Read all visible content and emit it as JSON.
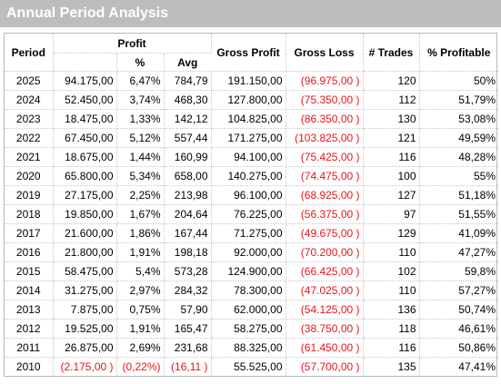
{
  "window": {
    "title": "Annual Period Analysis"
  },
  "colors": {
    "negative": "#e8151b",
    "title_bar": "#bdbdbd"
  },
  "table": {
    "headers": {
      "period": "Period",
      "profit": "Profit",
      "profit_pct": "%",
      "profit_avg": "Avg",
      "gross_profit": "Gross Profit",
      "gross_loss": "Gross Loss",
      "trades": "# Trades",
      "pct_profitable": "% Profitable"
    },
    "rows": [
      {
        "period": "2025",
        "profit": "94.175,00",
        "pct": "6,47%",
        "avg": "784,79",
        "gross_profit": "191.150,00",
        "gross_loss": "(96.975,00 )",
        "trades": "120",
        "pct_profitable": "50%"
      },
      {
        "period": "2024",
        "profit": "52.450,00",
        "pct": "3,74%",
        "avg": "468,30",
        "gross_profit": "127.800,00",
        "gross_loss": "(75.350,00 )",
        "trades": "112",
        "pct_profitable": "51,79%"
      },
      {
        "period": "2023",
        "profit": "18.475,00",
        "pct": "1,33%",
        "avg": "142,12",
        "gross_profit": "104.825,00",
        "gross_loss": "(86.350,00 )",
        "trades": "130",
        "pct_profitable": "53,08%"
      },
      {
        "period": "2022",
        "profit": "67.450,00",
        "pct": "5,12%",
        "avg": "557,44",
        "gross_profit": "171.275,00",
        "gross_loss": "(103.825,00 )",
        "trades": "121",
        "pct_profitable": "49,59%"
      },
      {
        "period": "2021",
        "profit": "18.675,00",
        "pct": "1,44%",
        "avg": "160,99",
        "gross_profit": "94.100,00",
        "gross_loss": "(75.425,00 )",
        "trades": "116",
        "pct_profitable": "48,28%"
      },
      {
        "period": "2020",
        "profit": "65.800,00",
        "pct": "5,34%",
        "avg": "658,00",
        "gross_profit": "140.275,00",
        "gross_loss": "(74.475,00 )",
        "trades": "100",
        "pct_profitable": "55%"
      },
      {
        "period": "2019",
        "profit": "27.175,00",
        "pct": "2,25%",
        "avg": "213,98",
        "gross_profit": "96.100,00",
        "gross_loss": "(68.925,00 )",
        "trades": "127",
        "pct_profitable": "51,18%"
      },
      {
        "period": "2018",
        "profit": "19.850,00",
        "pct": "1,67%",
        "avg": "204,64",
        "gross_profit": "76.225,00",
        "gross_loss": "(56.375,00 )",
        "trades": "97",
        "pct_profitable": "51,55%"
      },
      {
        "period": "2017",
        "profit": "21.600,00",
        "pct": "1,86%",
        "avg": "167,44",
        "gross_profit": "71.275,00",
        "gross_loss": "(49.675,00 )",
        "trades": "129",
        "pct_profitable": "41,09%"
      },
      {
        "period": "2016",
        "profit": "21.800,00",
        "pct": "1,91%",
        "avg": "198,18",
        "gross_profit": "92.000,00",
        "gross_loss": "(70.200,00 )",
        "trades": "110",
        "pct_profitable": "47,27%"
      },
      {
        "period": "2015",
        "profit": "58.475,00",
        "pct": "5,4%",
        "avg": "573,28",
        "gross_profit": "124.900,00",
        "gross_loss": "(66.425,00 )",
        "trades": "102",
        "pct_profitable": "59,8%"
      },
      {
        "period": "2014",
        "profit": "31.275,00",
        "pct": "2,97%",
        "avg": "284,32",
        "gross_profit": "78.300,00",
        "gross_loss": "(47.025,00 )",
        "trades": "110",
        "pct_profitable": "57,27%"
      },
      {
        "period": "2013",
        "profit": "7.875,00",
        "pct": "0,75%",
        "avg": "57,90",
        "gross_profit": "62.000,00",
        "gross_loss": "(54.125,00 )",
        "trades": "136",
        "pct_profitable": "50,74%"
      },
      {
        "period": "2012",
        "profit": "19.525,00",
        "pct": "1,91%",
        "avg": "165,47",
        "gross_profit": "58.275,00",
        "gross_loss": "(38.750,00 )",
        "trades": "118",
        "pct_profitable": "46,61%"
      },
      {
        "period": "2011",
        "profit": "26.875,00",
        "pct": "2,69%",
        "avg": "231,68",
        "gross_profit": "88.325,00",
        "gross_loss": "(61.450,00 )",
        "trades": "116",
        "pct_profitable": "50,86%"
      },
      {
        "period": "2010",
        "profit": "(2.175,00 )",
        "pct": "(0,22%)",
        "avg": "(16,11 )",
        "gross_profit": "55.525,00",
        "gross_loss": "(57.700,00 )",
        "trades": "135",
        "pct_profitable": "47,41%"
      }
    ]
  }
}
